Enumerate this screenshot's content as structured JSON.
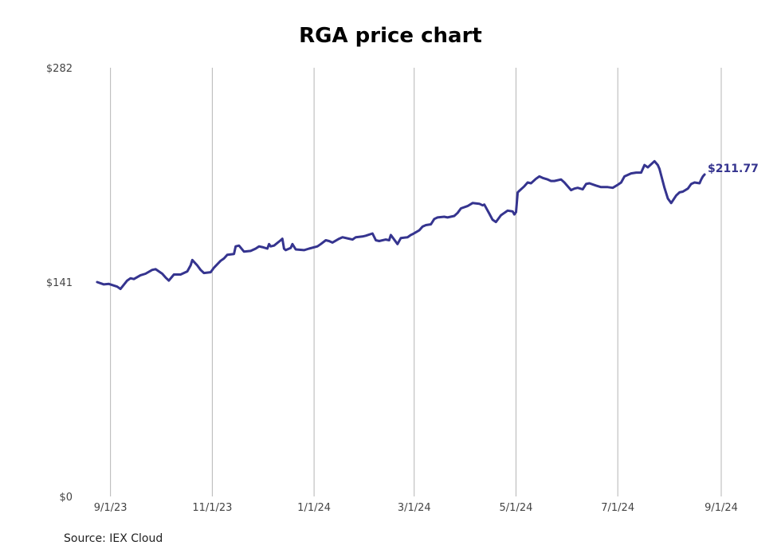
{
  "chart_data": {
    "type": "line",
    "title": "RGA price chart",
    "xlabel": "",
    "ylabel": "",
    "source": "Source: IEX Cloud",
    "y_ticks": [
      {
        "value": 0,
        "label": "$0"
      },
      {
        "value": 141,
        "label": "$141"
      },
      {
        "value": 282,
        "label": "$282"
      }
    ],
    "ylim": [
      0,
      282
    ],
    "xlim": [
      "2023-08-25",
      "2024-09-01"
    ],
    "x_ticks": [
      {
        "date": "2023-09-01",
        "label": "9/1/23"
      },
      {
        "date": "2023-11-01",
        "label": "11/1/23"
      },
      {
        "date": "2024-01-01",
        "label": "1/1/24"
      },
      {
        "date": "2024-03-01",
        "label": "3/1/24"
      },
      {
        "date": "2024-05-01",
        "label": "5/1/24"
      },
      {
        "date": "2024-07-01",
        "label": "7/1/24"
      },
      {
        "date": "2024-09-01",
        "label": "9/1/24"
      }
    ],
    "grid": {
      "vertical": true,
      "horizontal": false
    },
    "last_value_label": "$211.77",
    "series": [
      {
        "color": "#35348f",
        "points": [
          [
            "2023-08-24",
            141.0
          ],
          [
            "2023-08-28",
            139.5
          ],
          [
            "2023-08-31",
            139.8
          ],
          [
            "2023-09-05",
            138.0
          ],
          [
            "2023-09-07",
            136.5
          ],
          [
            "2023-09-11",
            142.0
          ],
          [
            "2023-09-13",
            143.5
          ],
          [
            "2023-09-15",
            143.0
          ],
          [
            "2023-09-19",
            145.5
          ],
          [
            "2023-09-22",
            146.5
          ],
          [
            "2023-09-26",
            149.0
          ],
          [
            "2023-09-28",
            149.5
          ],
          [
            "2023-10-02",
            146.5
          ],
          [
            "2023-10-04",
            144.0
          ],
          [
            "2023-10-06",
            142.0
          ],
          [
            "2023-10-09",
            146.0
          ],
          [
            "2023-10-13",
            146.0
          ],
          [
            "2023-10-17",
            148.0
          ],
          [
            "2023-10-19",
            152.0
          ],
          [
            "2023-10-20",
            155.5
          ],
          [
            "2023-10-23",
            152.0
          ],
          [
            "2023-10-25",
            149.0
          ],
          [
            "2023-10-27",
            147.0
          ],
          [
            "2023-10-31",
            147.5
          ],
          [
            "2023-11-02",
            150.5
          ],
          [
            "2023-11-06",
            155.0
          ],
          [
            "2023-11-08",
            156.5
          ],
          [
            "2023-11-10",
            159.0
          ],
          [
            "2023-11-14",
            159.5
          ],
          [
            "2023-11-15",
            164.5
          ],
          [
            "2023-11-17",
            165.0
          ],
          [
            "2023-11-20",
            161.0
          ],
          [
            "2023-11-24",
            161.5
          ],
          [
            "2023-11-27",
            163.0
          ],
          [
            "2023-11-29",
            164.5
          ],
          [
            "2023-12-01",
            164.0
          ],
          [
            "2023-12-04",
            163.0
          ],
          [
            "2023-12-05",
            166.0
          ],
          [
            "2023-12-06",
            164.5
          ],
          [
            "2023-12-08",
            165.0
          ],
          [
            "2023-12-12",
            168.5
          ],
          [
            "2023-12-13",
            169.5
          ],
          [
            "2023-12-14",
            163.0
          ],
          [
            "2023-12-15",
            162.0
          ],
          [
            "2023-12-18",
            163.5
          ],
          [
            "2023-12-19",
            166.0
          ],
          [
            "2023-12-21",
            162.5
          ],
          [
            "2023-12-26",
            162.0
          ],
          [
            "2023-12-29",
            163.0
          ],
          [
            "2024-01-03",
            164.5
          ],
          [
            "2024-01-05",
            166.0
          ],
          [
            "2024-01-08",
            168.5
          ],
          [
            "2024-01-10",
            168.0
          ],
          [
            "2024-01-12",
            167.0
          ],
          [
            "2024-01-16",
            169.5
          ],
          [
            "2024-01-18",
            170.5
          ],
          [
            "2024-01-22",
            169.5
          ],
          [
            "2024-01-24",
            169.0
          ],
          [
            "2024-01-26",
            170.5
          ],
          [
            "2024-01-30",
            171.0
          ],
          [
            "2024-02-01",
            171.5
          ],
          [
            "2024-02-05",
            173.0
          ],
          [
            "2024-02-07",
            168.5
          ],
          [
            "2024-02-09",
            168.0
          ],
          [
            "2024-02-13",
            169.0
          ],
          [
            "2024-02-15",
            168.5
          ],
          [
            "2024-02-16",
            172.0
          ],
          [
            "2024-02-20",
            166.0
          ],
          [
            "2024-02-22",
            170.0
          ],
          [
            "2024-02-26",
            170.5
          ],
          [
            "2024-02-28",
            172.0
          ],
          [
            "2024-02-29",
            172.5
          ],
          [
            "2024-03-04",
            175.0
          ],
          [
            "2024-03-06",
            177.5
          ],
          [
            "2024-03-08",
            178.5
          ],
          [
            "2024-03-11",
            179.0
          ],
          [
            "2024-03-13",
            182.5
          ],
          [
            "2024-03-15",
            183.5
          ],
          [
            "2024-03-19",
            184.0
          ],
          [
            "2024-03-21",
            183.5
          ],
          [
            "2024-03-25",
            184.5
          ],
          [
            "2024-03-27",
            186.5
          ],
          [
            "2024-03-29",
            189.5
          ],
          [
            "2024-04-02",
            191.0
          ],
          [
            "2024-04-05",
            193.0
          ],
          [
            "2024-04-09",
            192.5
          ],
          [
            "2024-04-11",
            191.5
          ],
          [
            "2024-04-12",
            192.0
          ],
          [
            "2024-04-15",
            186.0
          ],
          [
            "2024-04-17",
            182.0
          ],
          [
            "2024-04-19",
            180.5
          ],
          [
            "2024-04-22",
            185.0
          ],
          [
            "2024-04-24",
            186.5
          ],
          [
            "2024-04-26",
            188.0
          ],
          [
            "2024-04-29",
            187.5
          ],
          [
            "2024-04-30",
            185.5
          ],
          [
            "2024-05-01",
            187.0
          ],
          [
            "2024-05-02",
            200.0
          ],
          [
            "2024-05-03",
            201.0
          ],
          [
            "2024-05-06",
            204.0
          ],
          [
            "2024-05-08",
            206.5
          ],
          [
            "2024-05-10",
            206.0
          ],
          [
            "2024-05-13",
            209.0
          ],
          [
            "2024-05-15",
            210.5
          ],
          [
            "2024-05-17",
            209.5
          ],
          [
            "2024-05-20",
            208.5
          ],
          [
            "2024-05-22",
            207.5
          ],
          [
            "2024-05-24",
            207.5
          ],
          [
            "2024-05-28",
            208.5
          ],
          [
            "2024-05-30",
            206.5
          ],
          [
            "2024-06-03",
            201.5
          ],
          [
            "2024-06-05",
            202.5
          ],
          [
            "2024-06-07",
            203.0
          ],
          [
            "2024-06-10",
            202.0
          ],
          [
            "2024-06-12",
            205.5
          ],
          [
            "2024-06-14",
            206.0
          ],
          [
            "2024-06-18",
            204.5
          ],
          [
            "2024-06-21",
            203.5
          ],
          [
            "2024-06-25",
            203.5
          ],
          [
            "2024-06-28",
            203.0
          ],
          [
            "2024-07-01",
            205.0
          ],
          [
            "2024-07-03",
            206.5
          ],
          [
            "2024-07-05",
            210.5
          ],
          [
            "2024-07-09",
            212.5
          ],
          [
            "2024-07-12",
            213.0
          ],
          [
            "2024-07-15",
            213.0
          ],
          [
            "2024-07-17",
            218.0
          ],
          [
            "2024-07-19",
            216.5
          ],
          [
            "2024-07-23",
            220.5
          ],
          [
            "2024-07-25",
            218.0
          ],
          [
            "2024-07-26",
            215.5
          ],
          [
            "2024-07-29",
            203.0
          ],
          [
            "2024-07-31",
            196.0
          ],
          [
            "2024-08-02",
            193.0
          ],
          [
            "2024-08-05",
            198.0
          ],
          [
            "2024-08-07",
            200.0
          ],
          [
            "2024-08-09",
            200.5
          ],
          [
            "2024-08-12",
            202.5
          ],
          [
            "2024-08-14",
            205.5
          ],
          [
            "2024-08-16",
            206.5
          ],
          [
            "2024-08-19",
            206.0
          ],
          [
            "2024-08-20",
            208.5
          ],
          [
            "2024-08-21",
            210.5
          ],
          [
            "2024-08-22",
            211.77
          ]
        ]
      }
    ]
  }
}
